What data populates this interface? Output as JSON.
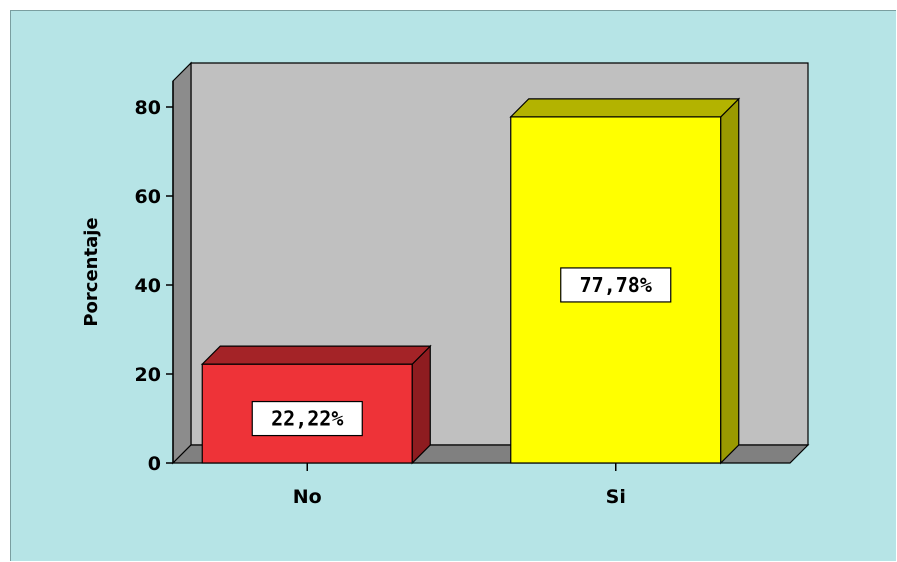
{
  "chart_data": {
    "type": "bar",
    "title": "",
    "xlabel": "",
    "ylabel": "Porcentaje",
    "categories": [
      "No",
      "Si"
    ],
    "values": [
      22.22,
      77.78
    ],
    "data_labels": [
      "22,22%",
      "77,78%"
    ],
    "yticks": [
      "0",
      "20",
      "40",
      "60",
      "80"
    ],
    "ylim": [
      0,
      80
    ],
    "grid": false,
    "legend": "none",
    "three_d": true
  },
  "colors": {
    "background": "#b6e4e6",
    "plot_wall": "#c0c0c0",
    "floor": "#808080",
    "bars": [
      "#ee3338",
      "#ffff00"
    ],
    "bar_sides": [
      "#8e1c20",
      "#9a9a00"
    ],
    "bar_tops": [
      "#a42327",
      "#b3b300"
    ]
  }
}
